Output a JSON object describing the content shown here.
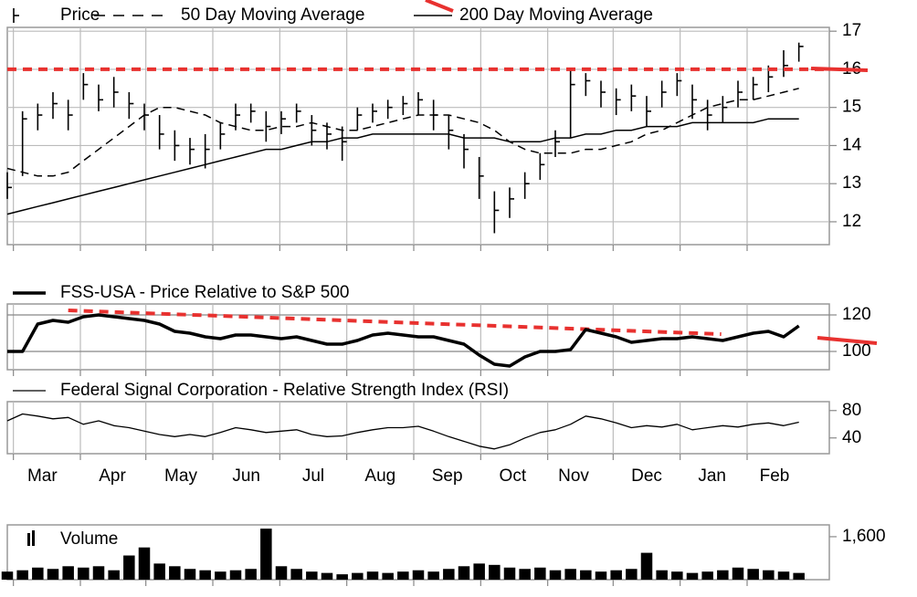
{
  "chart_data": [
    {
      "type": "ohlc",
      "x": [
        0,
        1,
        2,
        3,
        4,
        5,
        6,
        7,
        8,
        9,
        10,
        11,
        12,
        13,
        14,
        15,
        16,
        17,
        18,
        19,
        20,
        21,
        22,
        23,
        24,
        25,
        26,
        27,
        28,
        29,
        30,
        31,
        32,
        33,
        34,
        35,
        36,
        37,
        38,
        39,
        40,
        41,
        42,
        43,
        44,
        45,
        46,
        47,
        48,
        49,
        50,
        51,
        52
      ],
      "xlim": [
        0,
        54
      ],
      "xgrid": [
        0.4,
        4.8,
        9.1,
        13.5,
        17.9,
        22.3,
        26.7,
        31.1,
        35.5,
        39.8,
        44.2,
        48.6
      ],
      "ylim": [
        11.4,
        17.1
      ],
      "yticks": [
        12,
        13,
        14,
        15,
        16,
        17
      ],
      "grid": true,
      "level": 16,
      "level_color": "#e8312f",
      "series": [
        {
          "name": "Price",
          "color": "#000000",
          "high": [
            13.3,
            14.9,
            15.1,
            15.4,
            15.2,
            15.9,
            15.6,
            15.8,
            15.4,
            15.1,
            14.8,
            14.4,
            14.2,
            14.3,
            14.6,
            15.1,
            15.1,
            14.9,
            14.9,
            15.1,
            14.8,
            14.6,
            14.5,
            15.0,
            15.1,
            15.2,
            15.3,
            15.4,
            15.2,
            14.8,
            14.3,
            13.7,
            12.8,
            12.9,
            13.3,
            13.8,
            14.4,
            16.0,
            15.9,
            15.7,
            15.5,
            15.6,
            15.3,
            15.7,
            15.9,
            15.6,
            15.2,
            15.3,
            15.7,
            15.8,
            16.1,
            16.5,
            16.7
          ],
          "low": [
            12.6,
            13.2,
            14.4,
            14.7,
            14.4,
            15.2,
            14.9,
            15.0,
            14.7,
            14.4,
            13.9,
            13.6,
            13.5,
            13.4,
            13.9,
            14.4,
            14.6,
            14.1,
            14.3,
            14.6,
            14.0,
            13.9,
            13.6,
            14.4,
            14.6,
            14.7,
            14.8,
            14.8,
            14.4,
            13.9,
            13.4,
            12.6,
            11.7,
            12.1,
            12.6,
            13.1,
            13.7,
            14.2,
            15.3,
            15.0,
            14.8,
            14.9,
            14.5,
            15.0,
            15.3,
            14.7,
            14.4,
            14.6,
            15.0,
            15.2,
            15.4,
            15.8,
            16.2
          ],
          "close": [
            12.9,
            14.7,
            14.8,
            15.1,
            14.8,
            15.6,
            15.2,
            15.4,
            15.1,
            14.8,
            14.3,
            14.0,
            13.9,
            13.9,
            14.3,
            14.8,
            14.9,
            14.5,
            14.7,
            14.9,
            14.4,
            14.3,
            14.1,
            14.8,
            14.9,
            15.0,
            15.1,
            15.2,
            14.8,
            14.4,
            13.9,
            13.2,
            12.3,
            12.6,
            13.0,
            13.5,
            14.1,
            15.6,
            15.7,
            15.4,
            15.2,
            15.3,
            14.9,
            15.4,
            15.7,
            15.2,
            14.8,
            15.0,
            15.4,
            15.6,
            15.8,
            16.1,
            16.6
          ]
        },
        {
          "name": "50 Day Moving Average",
          "color": "#000000",
          "dash": true,
          "values": [
            13.4,
            13.3,
            13.2,
            13.2,
            13.3,
            13.6,
            13.9,
            14.2,
            14.5,
            14.8,
            15.0,
            15.0,
            14.9,
            14.8,
            14.6,
            14.5,
            14.4,
            14.4,
            14.5,
            14.5,
            14.6,
            14.5,
            14.4,
            14.4,
            14.5,
            14.6,
            14.7,
            14.8,
            14.8,
            14.8,
            14.7,
            14.6,
            14.4,
            14.1,
            13.9,
            13.8,
            13.8,
            13.8,
            13.9,
            13.9,
            14.0,
            14.1,
            14.3,
            14.4,
            14.6,
            14.8,
            15.0,
            15.1,
            15.2,
            15.2,
            15.3,
            15.4,
            15.5
          ]
        },
        {
          "name": "200 Day Moving Average",
          "color": "#000000",
          "values": [
            12.2,
            12.3,
            12.4,
            12.5,
            12.6,
            12.7,
            12.8,
            12.9,
            13.0,
            13.1,
            13.2,
            13.3,
            13.4,
            13.5,
            13.6,
            13.7,
            13.8,
            13.9,
            13.9,
            14.0,
            14.1,
            14.1,
            14.2,
            14.2,
            14.3,
            14.3,
            14.3,
            14.3,
            14.3,
            14.3,
            14.2,
            14.2,
            14.2,
            14.1,
            14.1,
            14.1,
            14.2,
            14.2,
            14.3,
            14.3,
            14.4,
            14.4,
            14.5,
            14.5,
            14.5,
            14.6,
            14.6,
            14.6,
            14.6,
            14.6,
            14.7,
            14.7,
            14.7
          ]
        }
      ]
    },
    {
      "type": "line",
      "ylim": [
        90,
        126
      ],
      "yticks": [
        100,
        120
      ],
      "grid": true,
      "trend": {
        "x": [
          4,
          46.9
        ],
        "values": [
          122.5,
          109.5
        ],
        "color": "#e8312f"
      },
      "series": [
        {
          "name": "FSS-USA - Price Relative to S&P 500",
          "color": "#000000",
          "width": 3.5,
          "values": [
            100,
            100,
            115,
            117,
            116,
            119,
            120,
            119,
            118,
            117,
            115,
            111,
            110,
            108,
            107,
            109,
            109,
            108,
            107,
            108,
            106,
            104,
            104,
            106,
            109,
            110,
            109,
            108,
            108,
            106,
            104,
            98,
            93,
            92,
            97,
            100,
            100,
            101,
            112,
            110,
            108,
            105,
            106,
            107,
            107,
            108,
            107,
            106,
            108,
            110,
            111,
            108,
            114
          ]
        }
      ]
    },
    {
      "type": "line",
      "ylim": [
        17,
        93
      ],
      "yticks": [
        40,
        80
      ],
      "grid": false,
      "xticks": [
        {
          "value": 2.3,
          "label": "Mar"
        },
        {
          "value": 6.9,
          "label": "Apr"
        },
        {
          "value": 11.4,
          "label": "May"
        },
        {
          "value": 15.7,
          "label": "Jun"
        },
        {
          "value": 20.1,
          "label": "Jul"
        },
        {
          "value": 24.5,
          "label": "Aug"
        },
        {
          "value": 28.9,
          "label": "Sep"
        },
        {
          "value": 33.2,
          "label": "Oct"
        },
        {
          "value": 37.2,
          "label": "Nov"
        },
        {
          "value": 42.0,
          "label": "Dec"
        },
        {
          "value": 46.3,
          "label": "Jan"
        },
        {
          "value": 50.4,
          "label": "Feb"
        }
      ],
      "series": [
        {
          "name": "Federal Signal Corporation - Relative Strength Index (RSI)",
          "color": "#000000",
          "width": 1.3,
          "values": [
            65,
            75,
            72,
            68,
            70,
            60,
            65,
            58,
            55,
            50,
            45,
            42,
            45,
            42,
            48,
            55,
            52,
            48,
            50,
            52,
            45,
            42,
            43,
            48,
            52,
            55,
            55,
            57,
            50,
            42,
            35,
            28,
            24,
            30,
            40,
            48,
            52,
            60,
            72,
            68,
            62,
            55,
            58,
            56,
            60,
            52,
            55,
            58,
            56,
            60,
            62,
            58,
            63
          ]
        }
      ]
    },
    {
      "type": "bar",
      "ylim": [
        0,
        2040
      ],
      "yticks": [
        {
          "value": 1600,
          "label": "1,600"
        }
      ],
      "grid": false,
      "series": [
        {
          "name": "Volume",
          "color": "#000000",
          "values": [
            300,
            350,
            450,
            400,
            500,
            450,
            500,
            350,
            900,
            1200,
            600,
            500,
            400,
            350,
            300,
            350,
            400,
            1900,
            500,
            400,
            300,
            250,
            200,
            250,
            300,
            250,
            300,
            350,
            300,
            400,
            500,
            600,
            550,
            450,
            400,
            450,
            350,
            400,
            350,
            300,
            350,
            400,
            1000,
            350,
            300,
            250,
            300,
            350,
            450,
            400,
            350,
            300,
            250
          ]
        }
      ]
    }
  ]
}
